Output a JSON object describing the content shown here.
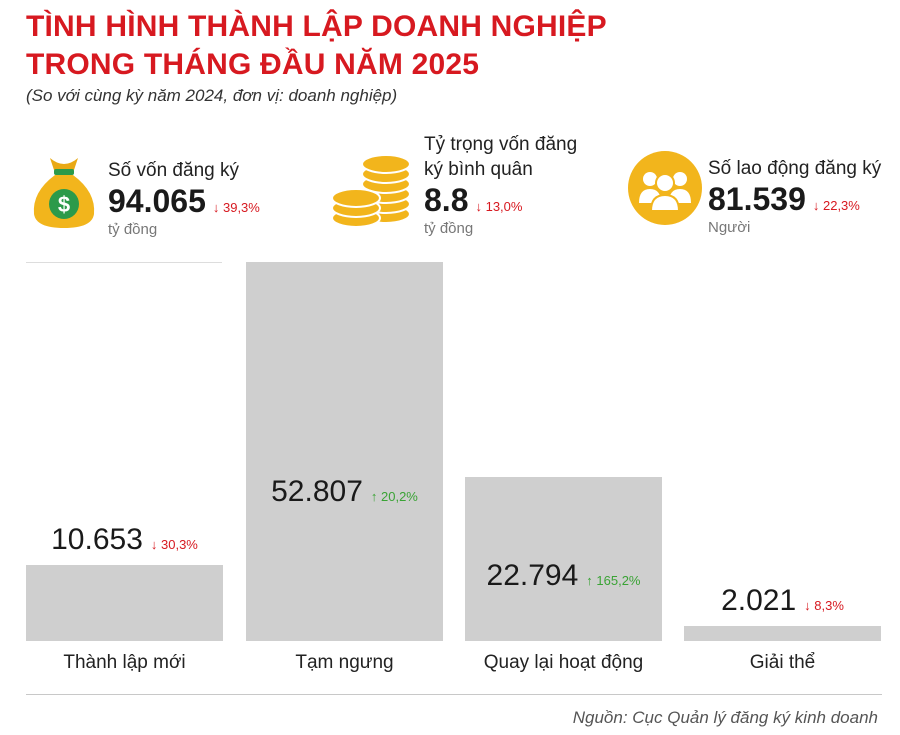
{
  "header": {
    "title_line1": "TÌNH HÌNH THÀNH LẬP DOANH NGHIỆP",
    "title_line2": "TRONG THÁNG ĐẦU NĂM 2025",
    "subtitle": "(So với cùng kỳ năm 2024, đơn vị: doanh nghiệp)"
  },
  "stats": [
    {
      "label": "Số vốn đăng ký",
      "value": "94.065",
      "change": "↓ 39,3%",
      "unit": "tỷ đồng",
      "icon": "money-bag-icon"
    },
    {
      "label_line1": "Tỷ trọng vốn đăng",
      "label_line2": "ký bình quân",
      "value": "8.8",
      "change": "↓ 13,0%",
      "unit": "tỷ đồng",
      "icon": "coin-stack-icon"
    },
    {
      "label": "Số lao động đăng ký",
      "value": "81.539",
      "change": "↓ 22,3%",
      "unit": "Người",
      "icon": "people-icon"
    }
  ],
  "chart_data": {
    "type": "bar",
    "categories": [
      "Thành lập mới",
      "Tạm ngưng",
      "Quay lại hoạt động",
      "Giải thể"
    ],
    "values": [
      10653,
      52807,
      22794,
      2021
    ],
    "value_labels": [
      "10.653",
      "52.807",
      "22.794",
      "2.021"
    ],
    "changes": [
      "↓ 30,3%",
      "↑ 20,2%",
      "↑ 165,2%",
      "↓ 8,3%"
    ],
    "change_direction": [
      "down",
      "up",
      "up",
      "down"
    ],
    "bar_color": "#cfcfcf",
    "grid": false,
    "ylim": [
      0,
      52807
    ]
  },
  "colors": {
    "accent": "#d71920",
    "icon_gold": "#f2b51c",
    "up": "#3aa335",
    "down": "#d71920"
  },
  "source": "Nguồn: Cục Quản lý đăng ký kinh doanh"
}
